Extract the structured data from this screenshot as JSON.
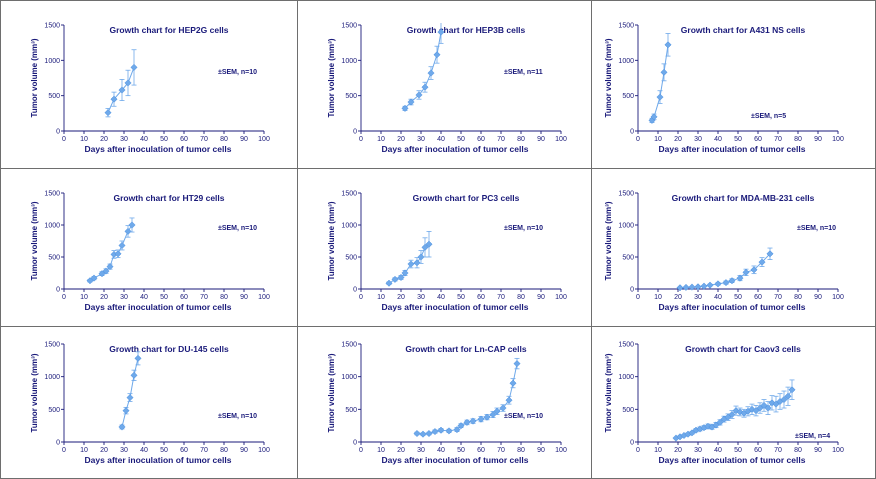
{
  "chart_data": [
    {
      "type": "line",
      "title": "Growth chart for HEP2G cells",
      "xlabel": "Days after inoculation of tumor cells",
      "ylabel": "Tumor volume (mm³)",
      "xlim": [
        0,
        100
      ],
      "ylim": [
        0,
        1500
      ],
      "xticks": [
        0,
        10,
        20,
        30,
        40,
        50,
        60,
        70,
        80,
        90,
        100
      ],
      "yticks": [
        0,
        500,
        1000,
        1500
      ],
      "annotation": "±SEM, n=10",
      "series": [
        {
          "x": [
            22,
            25,
            29,
            32,
            35
          ],
          "y": [
            260,
            450,
            580,
            680,
            900
          ],
          "err": [
            60,
            100,
            150,
            180,
            250
          ]
        }
      ]
    },
    {
      "type": "line",
      "title": "Growth chart for HEP3B cells",
      "xlabel": "Days after inoculation of tumor cells",
      "ylabel": "Tumor volume (mm³)",
      "xlim": [
        0,
        100
      ],
      "ylim": [
        0,
        1500
      ],
      "xticks": [
        0,
        10,
        20,
        30,
        40,
        50,
        60,
        70,
        80,
        90,
        100
      ],
      "yticks": [
        0,
        500,
        1000,
        1500
      ],
      "annotation": "±SEM, n=11",
      "series": [
        {
          "x": [
            22,
            25,
            29,
            32,
            35,
            38,
            40
          ],
          "y": [
            320,
            410,
            510,
            620,
            820,
            1080,
            1400
          ],
          "err": [
            30,
            40,
            60,
            70,
            90,
            120,
            160
          ]
        }
      ]
    },
    {
      "type": "line",
      "title": "Growth chart for A431 NS cells",
      "xlabel": "Days after inoculation of tumor cells",
      "ylabel": "Tumor volume (mm³)",
      "xlim": [
        0,
        100
      ],
      "ylim": [
        0,
        1500
      ],
      "xticks": [
        0,
        10,
        20,
        30,
        40,
        50,
        60,
        70,
        80,
        90,
        100
      ],
      "yticks": [
        0,
        500,
        1000,
        1500
      ],
      "annotation": "±SEM, n=5",
      "series": [
        {
          "x": [
            7,
            8,
            11,
            13,
            15
          ],
          "y": [
            150,
            200,
            480,
            830,
            1220
          ],
          "err": [
            30,
            40,
            90,
            120,
            160
          ]
        }
      ]
    },
    {
      "type": "line",
      "title": "Growth chart for HT29 cells",
      "xlabel": "Days after inoculation of tumor cells",
      "ylabel": "Tumor volume (mm³)",
      "xlim": [
        0,
        100
      ],
      "ylim": [
        0,
        1500
      ],
      "xticks": [
        0,
        10,
        20,
        30,
        40,
        50,
        60,
        70,
        80,
        90,
        100
      ],
      "yticks": [
        0,
        500,
        1000,
        1500
      ],
      "annotation": "±SEM, n=10",
      "series": [
        {
          "x": [
            13,
            15,
            19,
            21,
            23,
            25,
            27,
            29,
            32,
            34
          ],
          "y": [
            130,
            170,
            240,
            280,
            350,
            540,
            550,
            680,
            900,
            1000
          ],
          "err": [
            20,
            25,
            30,
            35,
            40,
            60,
            60,
            70,
            90,
            110
          ]
        }
      ]
    },
    {
      "type": "line",
      "title": "Growth chart for PC3 cells",
      "xlabel": "Days after inoculation of tumor cells",
      "ylabel": "Tumor volume (mm³)",
      "xlim": [
        0,
        100
      ],
      "ylim": [
        0,
        1500
      ],
      "xticks": [
        0,
        10,
        20,
        30,
        40,
        50,
        60,
        70,
        80,
        90,
        100
      ],
      "yticks": [
        0,
        500,
        1000,
        1500
      ],
      "annotation": "±SEM, n=10",
      "series": [
        {
          "x": [
            14,
            17,
            20,
            22,
            25,
            28,
            30,
            32,
            34
          ],
          "y": [
            90,
            150,
            180,
            250,
            390,
            410,
            500,
            650,
            700
          ],
          "err": [
            20,
            25,
            30,
            40,
            60,
            80,
            100,
            150,
            200
          ]
        }
      ]
    },
    {
      "type": "line",
      "title": "Growth chart for MDA-MB-231 cells",
      "xlabel": "Days after inoculation of tumor cells",
      "ylabel": "Tumor volume (mm³)",
      "xlim": [
        0,
        100
      ],
      "ylim": [
        0,
        1500
      ],
      "xticks": [
        0,
        10,
        20,
        30,
        40,
        50,
        60,
        70,
        80,
        90,
        100
      ],
      "yticks": [
        0,
        500,
        1000,
        1500
      ],
      "annotation": "±SEM, n=10",
      "series": [
        {
          "x": [
            21,
            24,
            27,
            30,
            33,
            36,
            40,
            44,
            47,
            51,
            54,
            58,
            62,
            66
          ],
          "y": [
            20,
            25,
            30,
            35,
            45,
            60,
            80,
            100,
            130,
            170,
            260,
            300,
            420,
            550
          ],
          "err": [
            5,
            5,
            8,
            10,
            12,
            15,
            20,
            25,
            30,
            40,
            50,
            60,
            70,
            90
          ]
        }
      ]
    },
    {
      "type": "line",
      "title": "Growth chart for DU-145 cells",
      "xlabel": "Days after inoculation of tumor cells",
      "ylabel": "Tumor volume (mm³)",
      "xlim": [
        0,
        100
      ],
      "ylim": [
        0,
        1500
      ],
      "xticks": [
        0,
        10,
        20,
        30,
        40,
        50,
        60,
        70,
        80,
        90,
        100
      ],
      "yticks": [
        0,
        500,
        1000,
        1500
      ],
      "annotation": "±SEM, n=10",
      "series": [
        {
          "x": [
            29,
            31,
            33,
            35,
            37
          ],
          "y": [
            230,
            480,
            680,
            1020,
            1280
          ],
          "err": [
            30,
            50,
            60,
            80,
            100
          ]
        }
      ]
    },
    {
      "type": "line",
      "title": "Growth chart for Ln-CAP cells",
      "xlabel": "Days after inoculation of tumor cells",
      "ylabel": "Tumor volume (mm³)",
      "xlim": [
        0,
        100
      ],
      "ylim": [
        0,
        1500
      ],
      "xticks": [
        0,
        10,
        20,
        30,
        40,
        50,
        60,
        70,
        80,
        90,
        100
      ],
      "yticks": [
        0,
        500,
        1000,
        1500
      ],
      "annotation": "±SEM, n=10",
      "series": [
        {
          "x": [
            28,
            31,
            34,
            37,
            40,
            44,
            48,
            50,
            53,
            56,
            60,
            63,
            66,
            68,
            71,
            74,
            76,
            78
          ],
          "y": [
            130,
            120,
            130,
            160,
            180,
            170,
            190,
            250,
            300,
            320,
            350,
            380,
            420,
            470,
            520,
            640,
            900,
            1200
          ],
          "err": [
            20,
            20,
            20,
            25,
            25,
            25,
            30,
            30,
            35,
            35,
            40,
            40,
            45,
            50,
            50,
            60,
            70,
            80
          ]
        }
      ]
    },
    {
      "type": "line",
      "title": "Growth chart for Caov3 cells",
      "xlabel": "Days after inoculation of tumor cells",
      "ylabel": "Tumor volume (mm³)",
      "xlim": [
        0,
        100
      ],
      "ylim": [
        0,
        1500
      ],
      "xticks": [
        0,
        10,
        20,
        30,
        40,
        50,
        60,
        70,
        80,
        90,
        100
      ],
      "yticks": [
        0,
        500,
        1000,
        1500
      ],
      "annotation": "±SEM, n=4",
      "series": [
        {
          "x": [
            19,
            21,
            23,
            25,
            27,
            29,
            31,
            33,
            35,
            37,
            39,
            41,
            43,
            45,
            47,
            49,
            51,
            53,
            55,
            57,
            59,
            61,
            63,
            65,
            67,
            69,
            71,
            73,
            75,
            77
          ],
          "y": [
            60,
            80,
            100,
            120,
            140,
            180,
            200,
            220,
            240,
            230,
            260,
            300,
            350,
            380,
            420,
            480,
            460,
            440,
            470,
            500,
            480,
            520,
            560,
            520,
            600,
            580,
            620,
            650,
            700,
            800
          ],
          "err": [
            10,
            15,
            15,
            20,
            20,
            25,
            30,
            30,
            35,
            35,
            40,
            40,
            45,
            50,
            60,
            70,
            60,
            60,
            70,
            80,
            80,
            80,
            90,
            100,
            110,
            120,
            120,
            130,
            140,
            150
          ]
        }
      ]
    }
  ]
}
